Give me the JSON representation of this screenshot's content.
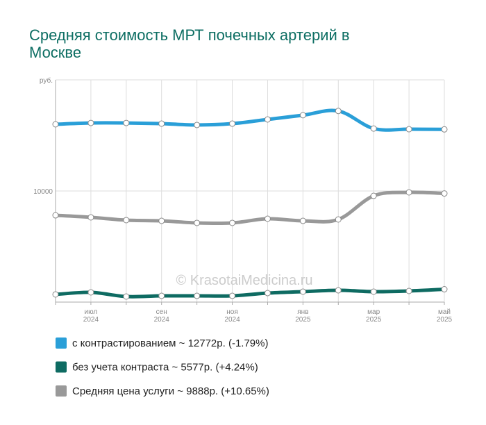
{
  "chart_data": {
    "type": "line",
    "title": "Средняя стоимость МРТ почечных артерий в Москве",
    "watermark": "© KrasotaiMedicina.ru",
    "categories": [
      null,
      "июл\n2024",
      null,
      "сен\n2024",
      null,
      "ноя\n2024",
      null,
      "янв\n2025",
      null,
      "мар\n2025",
      null,
      "май\n2025"
    ],
    "series": [
      {
        "name": "с контрастированием ~ 12772р. (-1.79%)",
        "color": "#2a9fd8",
        "values": [
          13000,
          13060,
          13060,
          13030,
          12970,
          13030,
          13220,
          13410,
          13600,
          12810,
          12780,
          12772
        ]
      },
      {
        "name": "без учета контраста ~ 5577р. (+4.24%)",
        "color": "#0e6b62",
        "values": [
          5344,
          5438,
          5250,
          5281,
          5281,
          5281,
          5406,
          5469,
          5531,
          5469,
          5500,
          5577
        ]
      },
      {
        "name": "Средняя цена услуги ~ 9888р. (+10.65%)",
        "color": "#999999",
        "values": [
          8906,
          8813,
          8688,
          8656,
          8563,
          8563,
          8750,
          8656,
          8719,
          9781,
          9938,
          9888
        ]
      }
    ],
    "ylim": [
      5000,
      15000
    ],
    "yticks": [
      {
        "value": 15000,
        "label": "руб."
      },
      10000
    ],
    "grid": true
  }
}
